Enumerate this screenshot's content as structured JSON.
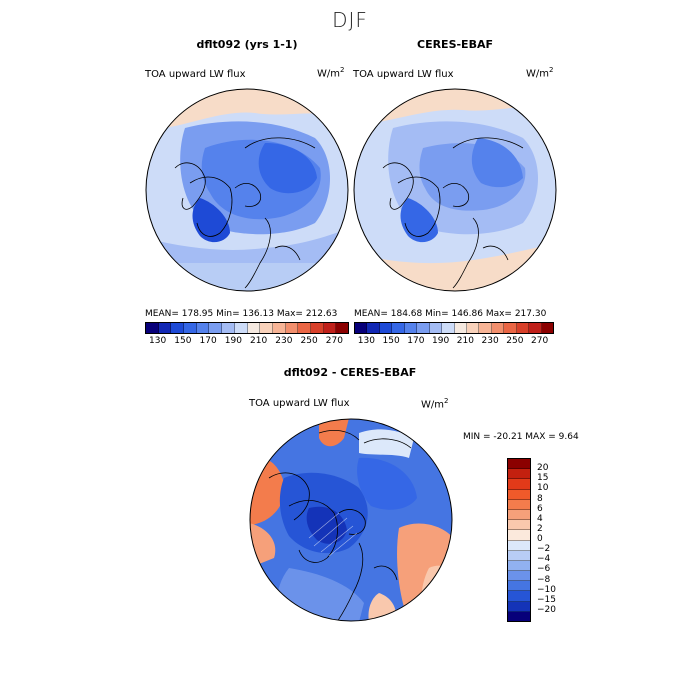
{
  "title": "DJF",
  "panels": [
    {
      "title": "dflt092 (yrs 1-1)",
      "variable": "TOA upward LW flux",
      "units_base": "W/m",
      "units_exp": "2",
      "stats": "MEAN= 178.95   Min= 136.13   Max= 212.63"
    },
    {
      "title": "CERES-EBAF",
      "variable": "TOA upward LW flux",
      "units_base": "W/m",
      "units_exp": "2",
      "stats": "MEAN= 184.68   Min= 146.86   Max= 217.30"
    },
    {
      "title": "dflt092 - CERES-EBAF",
      "variable": "TOA upward LW flux",
      "units_base": "W/m",
      "units_exp": "2",
      "stats": "MIN = -20.21  MAX =    9.64"
    }
  ],
  "colorbar_top": {
    "labels": [
      "130",
      "150",
      "170",
      "190",
      "210",
      "230",
      "250",
      "270"
    ],
    "colors": [
      "#08007a",
      "#1228b4",
      "#1e4ad6",
      "#3567e6",
      "#5582ec",
      "#7a9df0",
      "#a4bcf4",
      "#cddcf8",
      "#f5e9e0",
      "#f9d2bb",
      "#f7b496",
      "#f28f6d",
      "#ea6645",
      "#d8402a",
      "#c0201a",
      "#8b0000"
    ]
  },
  "colorbar_diff": {
    "labels": [
      "20",
      "15",
      "10",
      "8",
      "6",
      "4",
      "2",
      "0",
      "−2",
      "−4",
      "−6",
      "−8",
      "−10",
      "−15",
      "−20"
    ],
    "colors": [
      "#8b0000",
      "#c3200f",
      "#e23a19",
      "#f05a2a",
      "#f37c4c",
      "#f6a07a",
      "#f9c8ad",
      "#fbe9dc",
      "#dce8fa",
      "#b8cdf5",
      "#91b1f0",
      "#6b92ea",
      "#4575e2",
      "#2655d6",
      "#1433b8",
      "#07007a"
    ]
  },
  "chart_data": [
    {
      "type": "heatmap",
      "title": "dflt092 (yrs 1-1)",
      "subtitle": "TOA upward LW flux",
      "units": "W/m2",
      "projection": "polar stereographic (north)",
      "mean": 178.95,
      "min": 136.13,
      "max": 212.63,
      "colorbar_levels": [
        130,
        150,
        170,
        190,
        210,
        230,
        250,
        270
      ]
    },
    {
      "type": "heatmap",
      "title": "CERES-EBAF",
      "subtitle": "TOA upward LW flux",
      "units": "W/m2",
      "projection": "polar stereographic (north)",
      "mean": 184.68,
      "min": 146.86,
      "max": 217.3,
      "colorbar_levels": [
        130,
        150,
        170,
        190,
        210,
        230,
        250,
        270
      ]
    },
    {
      "type": "heatmap",
      "title": "dflt092 - CERES-EBAF",
      "subtitle": "TOA upward LW flux",
      "units": "W/m2",
      "projection": "polar stereographic (north)",
      "min": -20.21,
      "max": 9.64,
      "colorbar_levels": [
        -20,
        -15,
        -10,
        -8,
        -6,
        -4,
        -2,
        0,
        2,
        4,
        6,
        8,
        10,
        15,
        20
      ]
    }
  ]
}
